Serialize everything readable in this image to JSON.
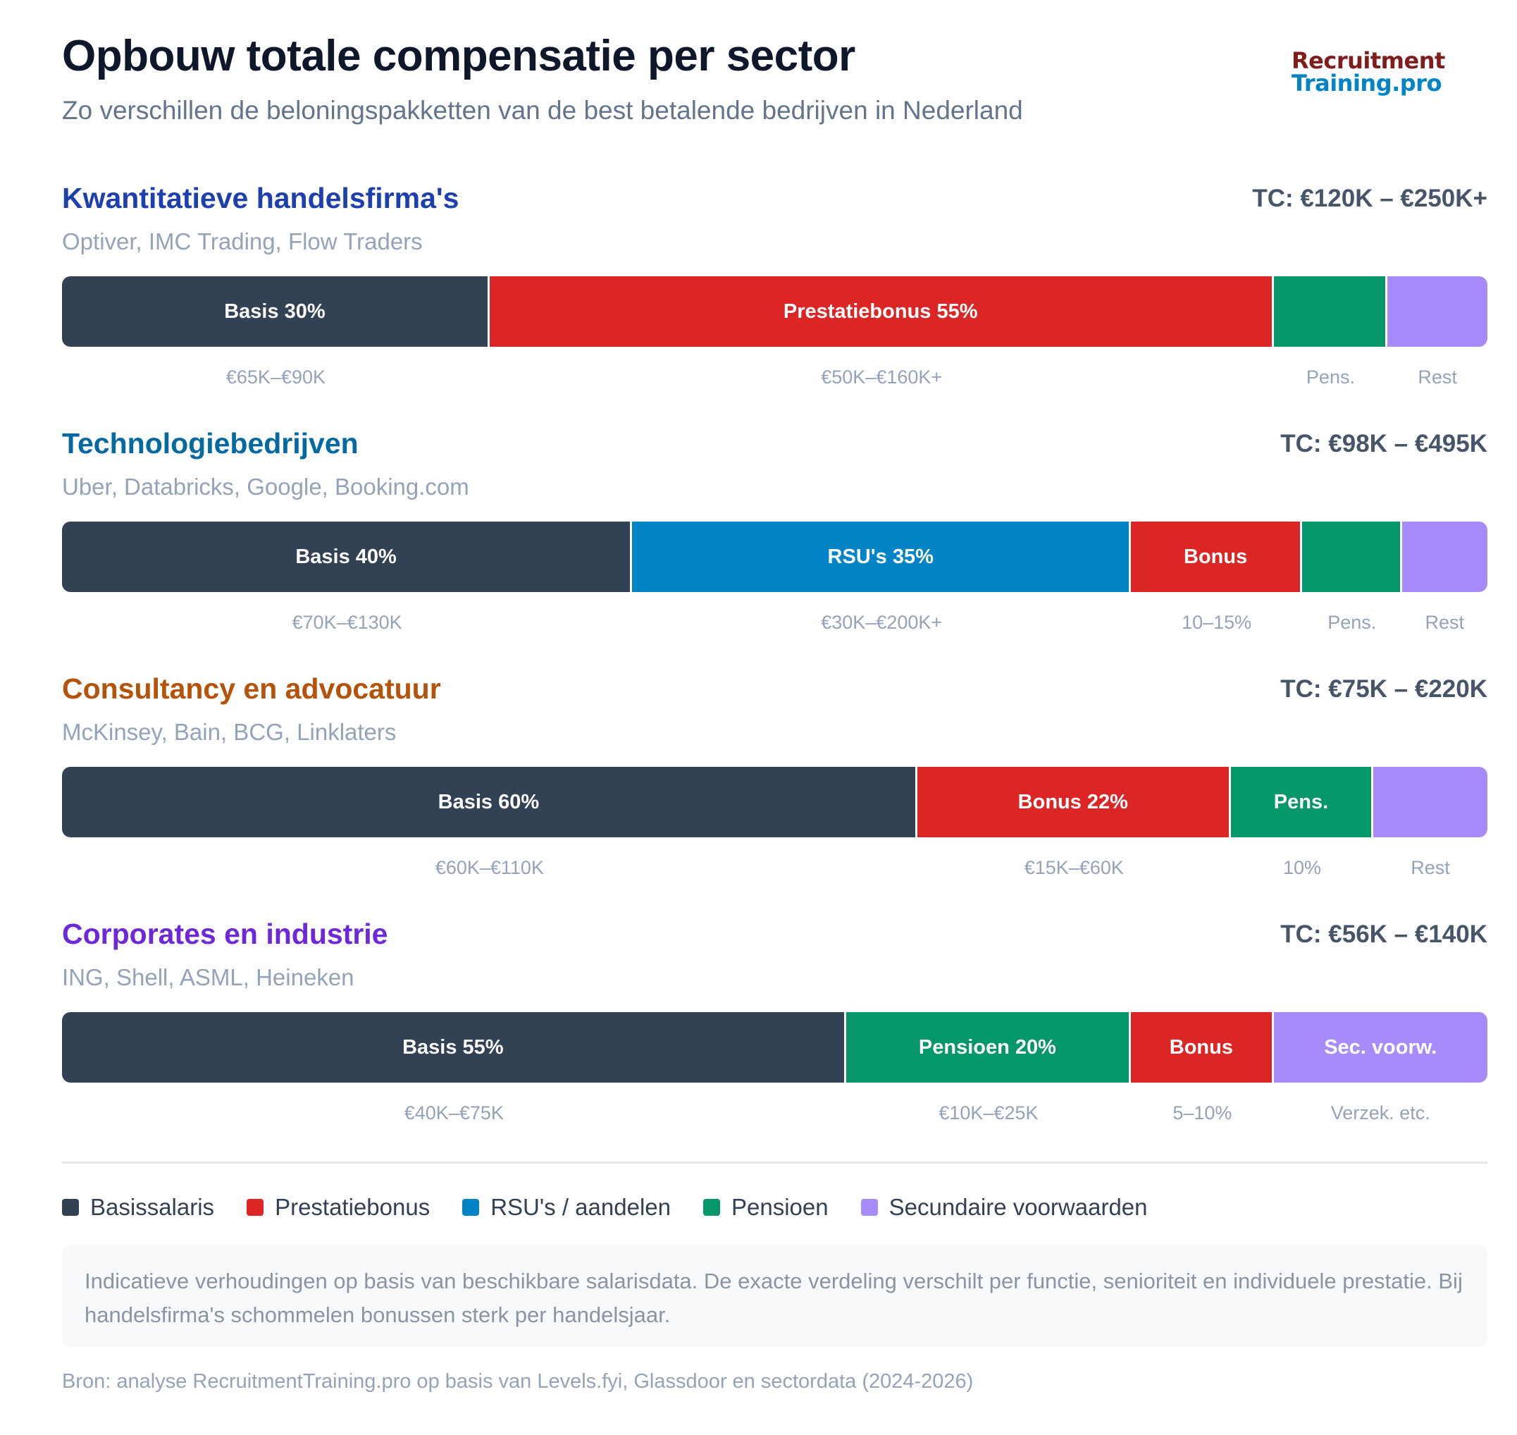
{
  "header": {
    "title": "Opbouw totale compensatie per sector",
    "subtitle": "Zo verschillen de beloningspakketten van de best betalende bedrijven in Nederland",
    "logo_line1": "Recruitment",
    "logo_line2": "Training.pro"
  },
  "colors": {
    "base": "#334155",
    "bonus": "#dc2626",
    "rsu": "#0284c7",
    "pension": "#059669",
    "secondary": "#a78bfa"
  },
  "chart_data": {
    "type": "bar",
    "stacked": true,
    "unit": "percent of total compensation",
    "sectors": [
      {
        "name": "Kwantitatieve handelsfirma's",
        "name_color": "#1e40af",
        "tc": "TC: €120K – €250K+",
        "companies": "Optiver, IMC Trading, Flow Traders",
        "segments": [
          {
            "component": "Basissalaris",
            "color": "#334155",
            "value": 30,
            "label": "Basis 30%",
            "sublabel": "€65K–€90K"
          },
          {
            "component": "Prestatiebonus",
            "color": "#dc2626",
            "value": 55,
            "label": "Prestatiebonus 55%",
            "sublabel": "€50K–€160K+"
          },
          {
            "component": "Pensioen",
            "color": "#059669",
            "value": 8,
            "label": "",
            "sublabel": "Pens."
          },
          {
            "component": "Secundaire voorwaarden",
            "color": "#a78bfa",
            "value": 7,
            "label": "",
            "sublabel": "Rest"
          }
        ]
      },
      {
        "name": "Technologiebedrijven",
        "name_color": "#0369a1",
        "tc": "TC: €98K – €495K",
        "companies": "Uber, Databricks, Google, Booking.com",
        "segments": [
          {
            "component": "Basissalaris",
            "color": "#334155",
            "value": 40,
            "label": "Basis 40%",
            "sublabel": "€70K–€130K"
          },
          {
            "component": "RSU's / aandelen",
            "color": "#0284c7",
            "value": 35,
            "label": "RSU's 35%",
            "sublabel": "€30K–€200K+"
          },
          {
            "component": "Prestatiebonus",
            "color": "#dc2626",
            "value": 12,
            "label": "Bonus",
            "sublabel": "10–15%"
          },
          {
            "component": "Pensioen",
            "color": "#059669",
            "value": 7,
            "label": "",
            "sublabel": "Pens."
          },
          {
            "component": "Secundaire voorwaarden",
            "color": "#a78bfa",
            "value": 6,
            "label": "",
            "sublabel": "Rest"
          }
        ]
      },
      {
        "name": "Consultancy en advocatuur",
        "name_color": "#b45309",
        "tc": "TC: €75K – €220K",
        "companies": "McKinsey, Bain, BCG, Linklaters",
        "segments": [
          {
            "component": "Basissalaris",
            "color": "#334155",
            "value": 60,
            "label": "Basis 60%",
            "sublabel": "€60K–€110K"
          },
          {
            "component": "Prestatiebonus",
            "color": "#dc2626",
            "value": 22,
            "label": "Bonus 22%",
            "sublabel": "€15K–€60K"
          },
          {
            "component": "Pensioen",
            "color": "#059669",
            "value": 10,
            "label": "Pens.",
            "sublabel": "10%"
          },
          {
            "component": "Secundaire voorwaarden",
            "color": "#a78bfa",
            "value": 8,
            "label": "",
            "sublabel": "Rest"
          }
        ]
      },
      {
        "name": "Corporates en industrie",
        "name_color": "#6d28d9",
        "tc": "TC: €56K – €140K",
        "companies": "ING, Shell, ASML, Heineken",
        "segments": [
          {
            "component": "Basissalaris",
            "color": "#334155",
            "value": 55,
            "label": "Basis 55%",
            "sublabel": "€40K–€75K"
          },
          {
            "component": "Pensioen",
            "color": "#059669",
            "value": 20,
            "label": "Pensioen 20%",
            "sublabel": "€10K–€25K"
          },
          {
            "component": "Prestatiebonus",
            "color": "#dc2626",
            "value": 10,
            "label": "Bonus",
            "sublabel": "5–10%"
          },
          {
            "component": "Secundaire voorwaarden",
            "color": "#a78bfa",
            "value": 15,
            "label": "Sec. voorw.",
            "sublabel": "Verzek. etc."
          }
        ]
      }
    ],
    "legend": [
      {
        "label": "Basissalaris",
        "color": "#334155"
      },
      {
        "label": "Prestatiebonus",
        "color": "#dc2626"
      },
      {
        "label": "RSU's / aandelen",
        "color": "#0284c7"
      },
      {
        "label": "Pensioen",
        "color": "#059669"
      },
      {
        "label": "Secundaire voorwaarden",
        "color": "#a78bfa"
      }
    ]
  },
  "footer": {
    "note": "Indicatieve verhoudingen op basis van beschikbare salarisdata. De exacte verdeling verschilt per functie, senioriteit en individuele prestatie. Bij handelsfirma's schommelen bonussen sterk per handelsjaar.",
    "source": "Bron: analyse RecruitmentTraining.pro op basis van Levels.fyi, Glassdoor en sectordata (2024-2026)"
  }
}
